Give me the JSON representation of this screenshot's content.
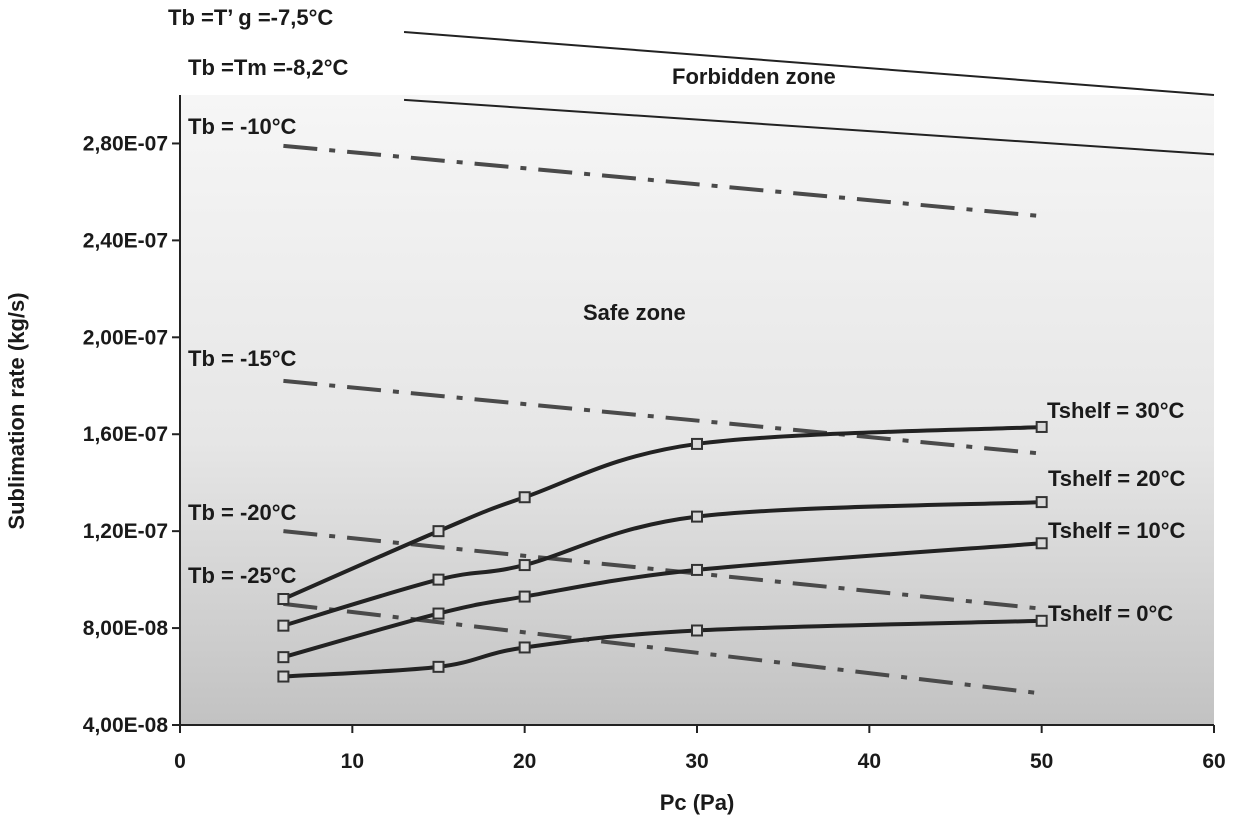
{
  "chart_data": {
    "type": "line",
    "xlabel": "Pc (Pa)",
    "ylabel": "Sublimation rate (kg/s)",
    "xlim": [
      0,
      60
    ],
    "ylim": [
      4e-08,
      3e-07
    ],
    "x_ticks": [
      0,
      10,
      20,
      30,
      40,
      50,
      60
    ],
    "x_tick_labels": [
      "0",
      "10",
      "20",
      "30",
      "40",
      "50",
      "60"
    ],
    "y_ticks": [
      4e-08,
      8e-08,
      1.2e-07,
      1.6e-07,
      2e-07,
      2.4e-07,
      2.8e-07
    ],
    "y_tick_labels": [
      "4,00E-08",
      "8,00E-08",
      "1,20E-07",
      "1,60E-07",
      "2,00E-07",
      "2,40E-07",
      "2,80E-07"
    ],
    "grid": false,
    "zone_labels": {
      "forbidden": "Forbidden zone",
      "safe": "Safe zone"
    },
    "limit_lines": [
      {
        "name": "Tb =T’ g =-7,5°C",
        "x": [
          13,
          60
        ],
        "y": [
          3.26e-07,
          3e-07
        ]
      },
      {
        "name": "Tb =Tm =-8,2°C",
        "x": [
          13,
          60
        ],
        "y": [
          2.98e-07,
          2.755e-07
        ]
      }
    ],
    "tb_lines": [
      {
        "name": "Tb = -10°C",
        "x": [
          6,
          50
        ],
        "y": [
          2.79e-07,
          2.5e-07
        ]
      },
      {
        "name": "Tb = -15°C",
        "x": [
          6,
          50
        ],
        "y": [
          1.82e-07,
          1.52e-07
        ]
      },
      {
        "name": "Tb = -20°C",
        "x": [
          6,
          50
        ],
        "y": [
          1.2e-07,
          8.8e-08
        ]
      },
      {
        "name": "Tb = -25°C",
        "x": [
          6,
          50
        ],
        "y": [
          9e-08,
          5.3e-08
        ]
      }
    ],
    "series": [
      {
        "name": "Tshelf = 30°C",
        "x": [
          6,
          15,
          20,
          30,
          50
        ],
        "y": [
          9.2e-08,
          1.2e-07,
          1.34e-07,
          1.56e-07,
          1.63e-07
        ]
      },
      {
        "name": "Tshelf = 20°C",
        "x": [
          6,
          15,
          20,
          30,
          50
        ],
        "y": [
          8.1e-08,
          1e-07,
          1.06e-07,
          1.26e-07,
          1.32e-07
        ]
      },
      {
        "name": "Tshelf = 10°C",
        "x": [
          6,
          15,
          20,
          30,
          50
        ],
        "y": [
          6.8e-08,
          8.6e-08,
          9.3e-08,
          1.04e-07,
          1.15e-07
        ]
      },
      {
        "name": "Tshelf = 0°C",
        "x": [
          6,
          15,
          20,
          30,
          50
        ],
        "y": [
          6e-08,
          6.4e-08,
          7.2e-08,
          7.9e-08,
          8.3e-08
        ]
      }
    ],
    "colors": {
      "lines": "#222222",
      "dash_lines": "#4a4a4a",
      "bg_top": "#f4f4f4",
      "bg_bottom": "#c4c4c4"
    }
  }
}
